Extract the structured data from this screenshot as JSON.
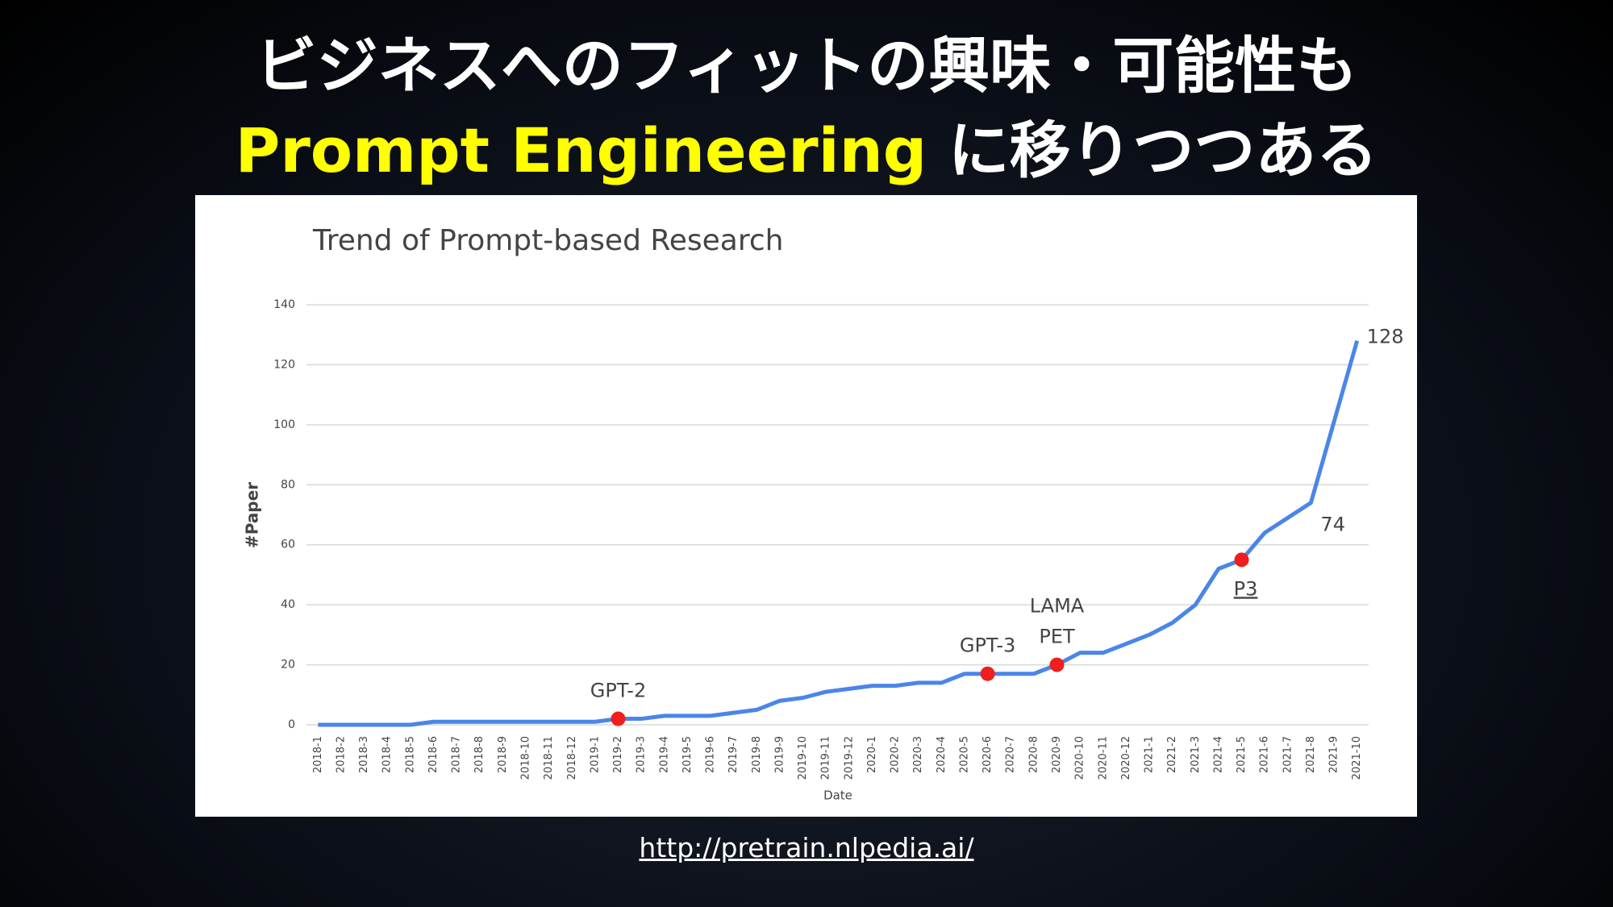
{
  "slide": {
    "title_line1": "ビジネスへのフィットの興味・可能性も",
    "title_highlight": "Prompt Engineering",
    "title_rest": " に移りつつある",
    "source_url": "http://pretrain.nlpedia.ai/"
  },
  "chart_data": {
    "type": "line",
    "title": "Trend of Prompt-based Research",
    "x_label": "Date",
    "y_label": "#Paper",
    "categories": [
      "2018-1",
      "2018-2",
      "2018-3",
      "2018-4",
      "2018-5",
      "2018-6",
      "2018-7",
      "2018-8",
      "2018-9",
      "2018-10",
      "2018-11",
      "2018-12",
      "2019-1",
      "2019-2",
      "2019-3",
      "2019-4",
      "2019-5",
      "2019-6",
      "2019-7",
      "2019-8",
      "2019-9",
      "2019-10",
      "2019-11",
      "2019-12",
      "2020-1",
      "2020-2",
      "2020-3",
      "2020-4",
      "2020-5",
      "2020-6",
      "2020-7",
      "2020-8",
      "2020-9",
      "2020-10",
      "2020-11",
      "2020-12",
      "2021-1",
      "2021-2",
      "2021-3",
      "2021-4",
      "2021-5",
      "2021-6",
      "2021-7",
      "2021-8",
      "2021-9",
      "2021-10"
    ],
    "series": [
      {
        "name": "#Paper",
        "color": "#4a86e8",
        "values": [
          0,
          0,
          0,
          0,
          0,
          1,
          1,
          1,
          1,
          1,
          1,
          1,
          1,
          2,
          2,
          3,
          3,
          3,
          4,
          5,
          8,
          9,
          11,
          12,
          13,
          13,
          14,
          14,
          17,
          17,
          17,
          17,
          20,
          24,
          24,
          27,
          30,
          34,
          40,
          52,
          55,
          64,
          69,
          74,
          101,
          128
        ]
      }
    ],
    "ylim": [
      0,
      140
    ],
    "yticks": [
      0,
      20,
      40,
      60,
      80,
      100,
      120,
      140
    ],
    "grid": true,
    "value_labels_at": [
      "2021-8",
      "2021-10"
    ],
    "annotations": [
      {
        "text": [
          "GPT-2"
        ],
        "x": "2019-2",
        "position": "above"
      },
      {
        "text": [
          "GPT-3"
        ],
        "x": "2020-6",
        "position": "above"
      },
      {
        "text": [
          "LAMA",
          "PET"
        ],
        "x": "2020-9",
        "position": "above"
      },
      {
        "text": [
          "P3"
        ],
        "x": "2021-5",
        "position": "below"
      }
    ],
    "marker_color": "#f01e1e"
  }
}
